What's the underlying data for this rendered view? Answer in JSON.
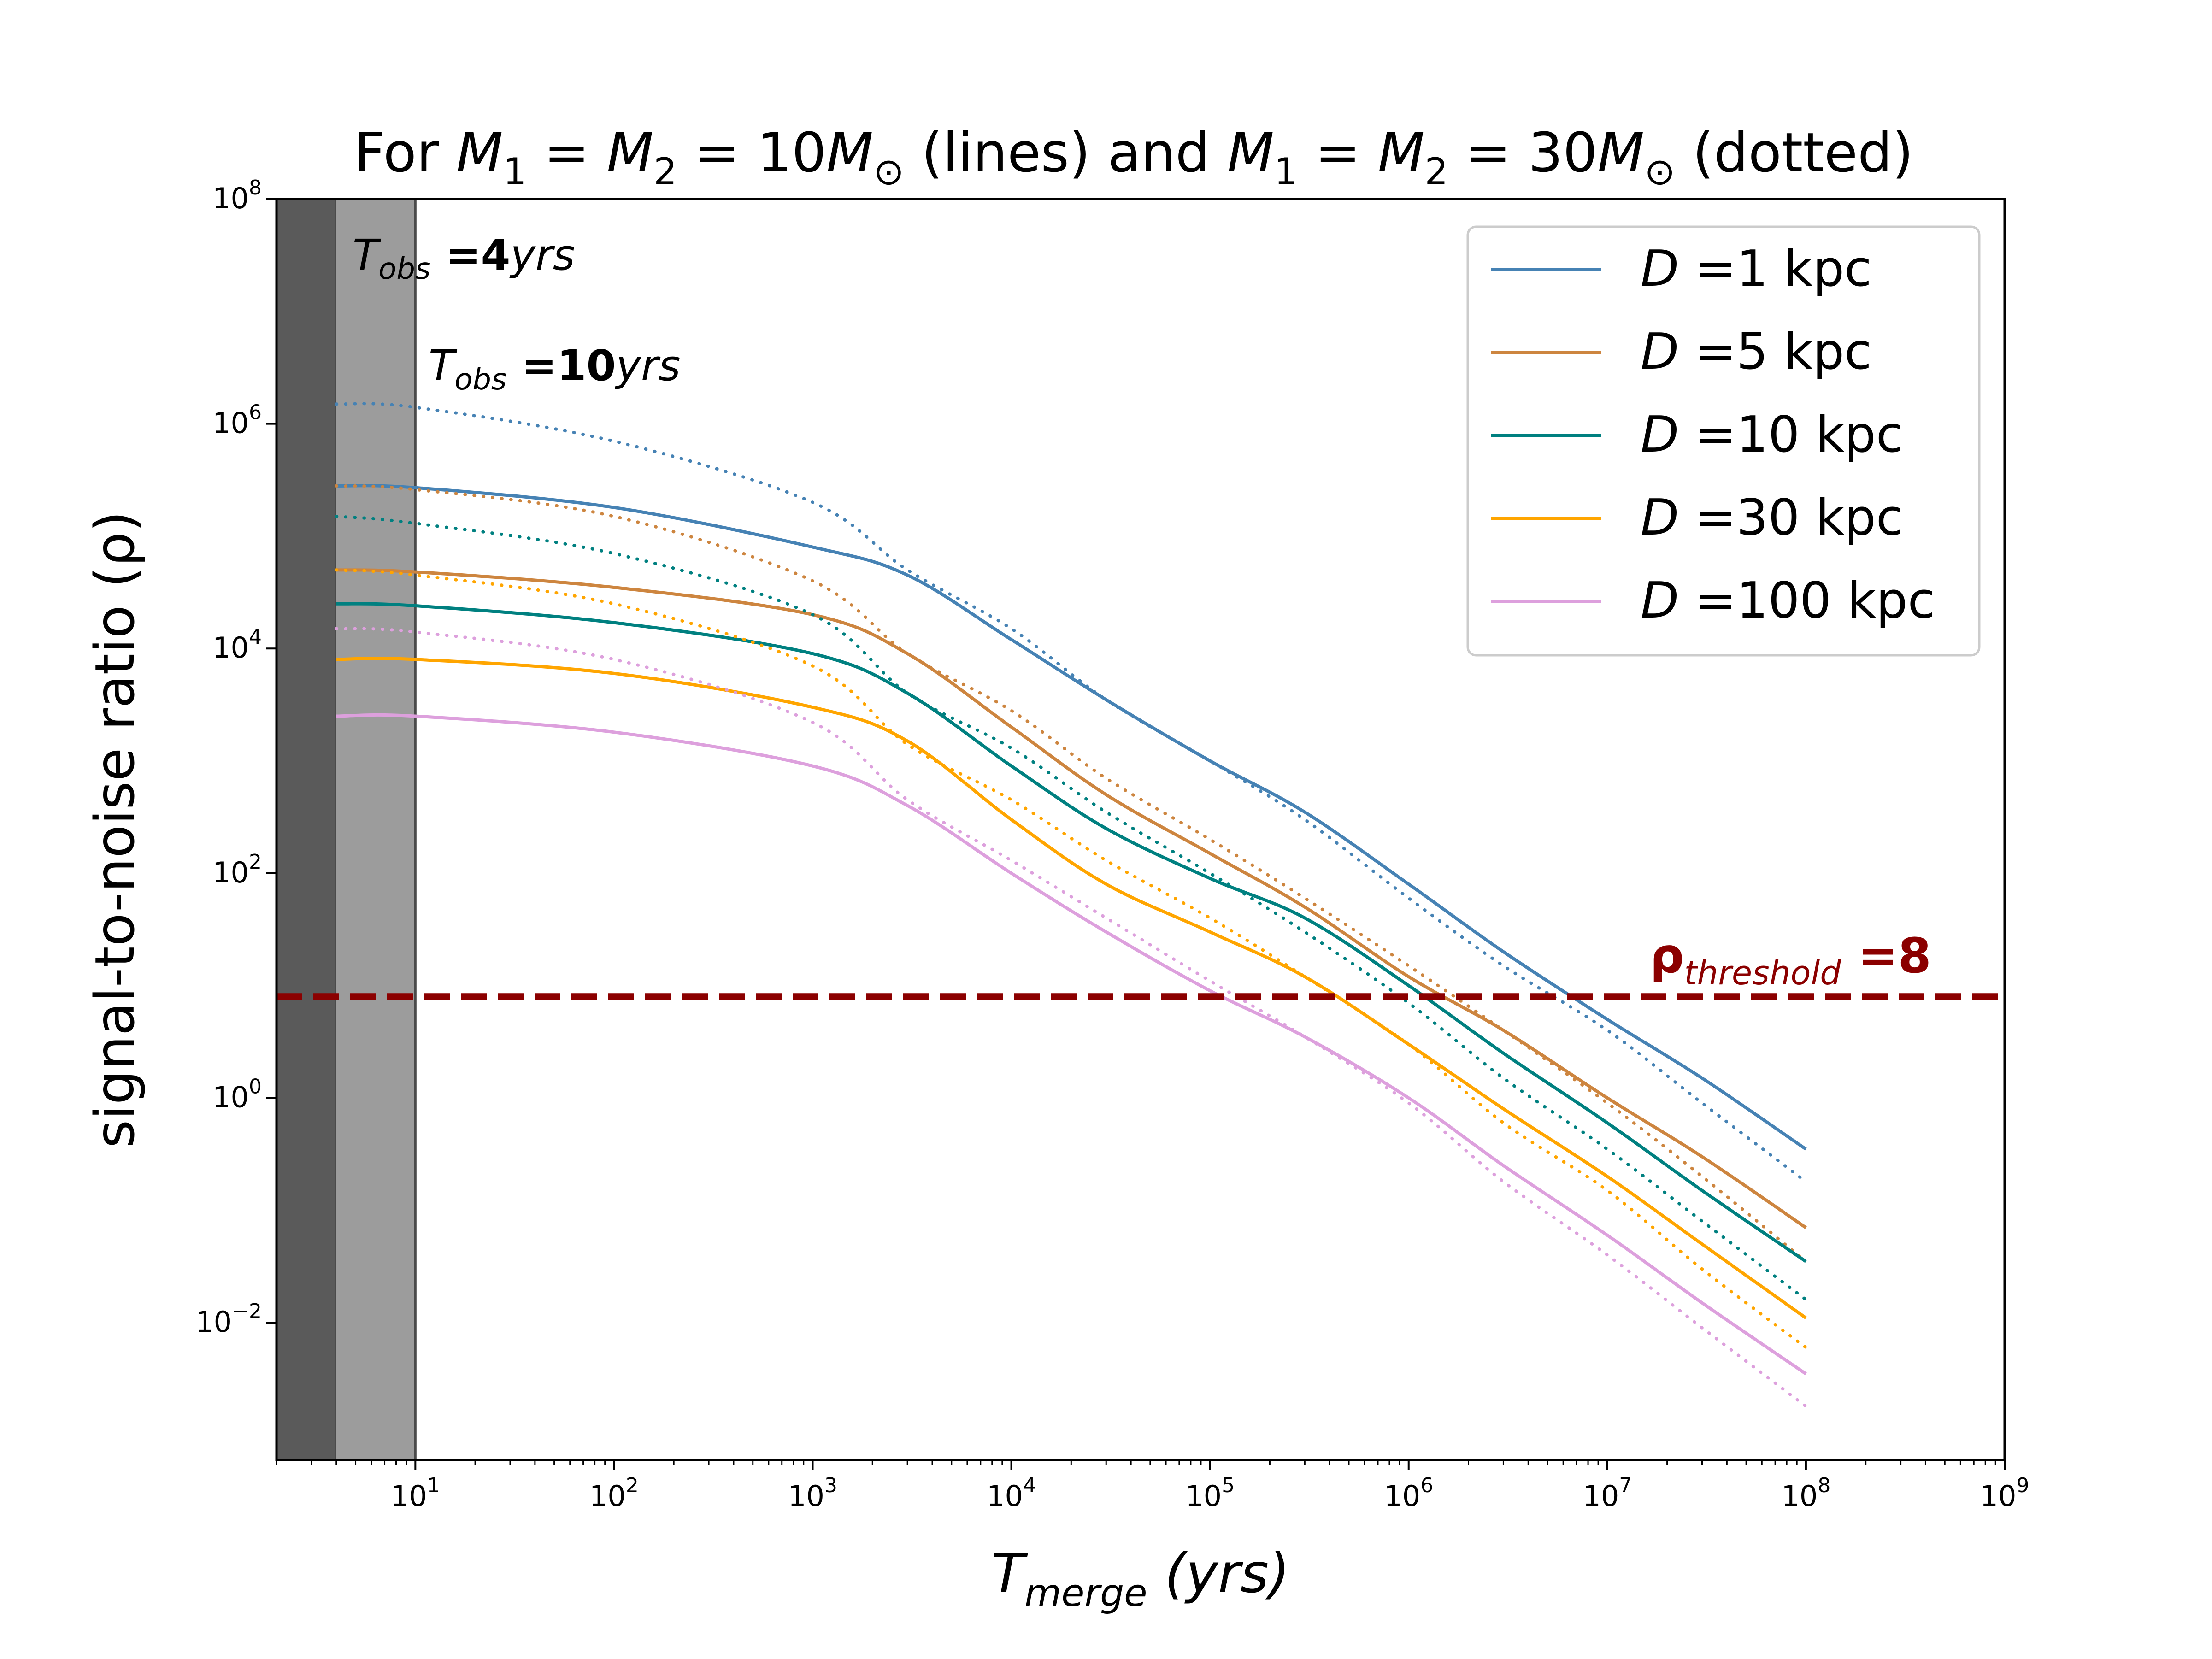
{
  "chart_data": {
    "type": "line",
    "title": {
      "pre": "For ",
      "mass_a": "M",
      "sub1": "1",
      "eq": " = ",
      "mass_b": "M",
      "sub2": "2",
      "val_lines": " = 10",
      "msun": "M",
      "sun": "⊙",
      "lines_word": " (lines) and ",
      "val_dotted": " = 30",
      "dotted_word": " (dotted)"
    },
    "xlabel": {
      "main": "T",
      "sub": "merge",
      "unit": " (yrs)"
    },
    "ylabel": "signal-to-noise ratio (ρ)",
    "x_scale": "log",
    "y_scale": "log",
    "xlim": [
      2,
      1000000000
    ],
    "ylim": [
      0.0006,
      100000000
    ],
    "x_ticks": [
      {
        "value": 10,
        "base": "10",
        "exp": "1"
      },
      {
        "value": 100,
        "base": "10",
        "exp": "2"
      },
      {
        "value": 1000,
        "base": "10",
        "exp": "3"
      },
      {
        "value": 10000,
        "base": "10",
        "exp": "4"
      },
      {
        "value": 100000,
        "base": "10",
        "exp": "5"
      },
      {
        "value": 1000000,
        "base": "10",
        "exp": "6"
      },
      {
        "value": 10000000,
        "base": "10",
        "exp": "7"
      },
      {
        "value": 100000000,
        "base": "10",
        "exp": "8"
      },
      {
        "value": 1000000000,
        "base": "10",
        "exp": "9"
      }
    ],
    "y_ticks": [
      {
        "value": 0.01,
        "base": "10",
        "exp": "−2"
      },
      {
        "value": 1,
        "base": "10",
        "exp": "0"
      },
      {
        "value": 100,
        "base": "10",
        "exp": "2"
      },
      {
        "value": 10000,
        "base": "10",
        "exp": "4"
      },
      {
        "value": 1000000,
        "base": "10",
        "exp": "6"
      },
      {
        "value": 100000000,
        "base": "10",
        "exp": "8"
      }
    ],
    "grid": false,
    "legend_position": "top-right",
    "shaded_regions": [
      {
        "x0": 2,
        "x1": 4,
        "color": "#5a5a5a",
        "label_main": "T",
        "label_sub": "obs",
        "label_eq": " =",
        "label_num": "4",
        "label_unit": "yrs"
      },
      {
        "x0": 4,
        "x1": 10,
        "color": "#9c9c9c",
        "label_main": "T",
        "label_sub": "obs",
        "label_eq": " =",
        "label_num": "10",
        "label_unit": "yrs"
      }
    ],
    "threshold": {
      "value": 8,
      "color": "#8b0000",
      "label_main": "ρ",
      "label_sub": "threshold",
      "label_eq": " =8"
    },
    "legend": [
      {
        "prefix": "D",
        "text": " =1 kpc",
        "color": "#4682b4"
      },
      {
        "prefix": "D",
        "text": " =5 kpc",
        "color": "#cd853f"
      },
      {
        "prefix": "D",
        "text": " =10 kpc",
        "color": "#008080"
      },
      {
        "prefix": "D",
        "text": " =30 kpc",
        "color": "#ffa500"
      },
      {
        "prefix": "D",
        "text": " =100 kpc",
        "color": "#dda0dd"
      }
    ],
    "series": [
      {
        "style": "solid",
        "color": "#4682b4",
        "x": [
          4,
          10,
          100,
          1000,
          3000,
          10000,
          30000,
          100000,
          300000,
          1000000,
          3000000,
          10000000,
          30000000,
          100000000
        ],
        "y": [
          280000,
          270000,
          180000,
          80000,
          45000,
          12000,
          3500,
          1000,
          350,
          80,
          20,
          5,
          1.5,
          0.35
        ]
      },
      {
        "style": "dotted",
        "color": "#4682b4",
        "x": [
          4,
          10,
          100,
          1000,
          3000,
          10000,
          30000,
          100000,
          300000,
          1000000,
          3000000,
          10000000,
          30000000,
          100000000
        ],
        "y": [
          1500000,
          1400000,
          700000,
          200000,
          50000,
          15000,
          3500,
          1000,
          300,
          60,
          15,
          4,
          0.9,
          0.18
        ]
      },
      {
        "style": "solid",
        "color": "#cd853f",
        "x": [
          4,
          10,
          100,
          1000,
          3000,
          10000,
          30000,
          100000,
          300000,
          1000000,
          3000000,
          10000000,
          30000000,
          100000000
        ],
        "y": [
          50000,
          48000,
          35000,
          20000,
          9000,
          2000,
          500,
          150,
          50,
          12,
          4,
          1,
          0.3,
          0.07
        ]
      },
      {
        "style": "dotted",
        "color": "#cd853f",
        "x": [
          4,
          10,
          100,
          1000,
          3000,
          10000,
          30000,
          100000,
          300000,
          1000000,
          3000000,
          10000000,
          30000000,
          100000000
        ],
        "y": [
          280000,
          260000,
          150000,
          40000,
          9000,
          2800,
          700,
          200,
          60,
          15,
          4,
          0.9,
          0.2,
          0.035
        ]
      },
      {
        "style": "solid",
        "color": "#008080",
        "x": [
          4,
          10,
          100,
          1000,
          3000,
          10000,
          30000,
          100000,
          300000,
          1000000,
          3000000,
          10000000,
          30000000,
          100000000
        ],
        "y": [
          25000,
          24000,
          17000,
          9000,
          4000,
          900,
          250,
          90,
          40,
          10,
          2.5,
          0.6,
          0.15,
          0.035
        ]
      },
      {
        "style": "dotted",
        "color": "#008080",
        "x": [
          4,
          10,
          100,
          1000,
          3000,
          10000,
          30000,
          100000,
          300000,
          1000000,
          3000000,
          10000000,
          30000000,
          100000000
        ],
        "y": [
          150000,
          130000,
          70000,
          20000,
          4000,
          1300,
          350,
          100,
          30,
          7,
          1.5,
          0.35,
          0.08,
          0.016
        ]
      },
      {
        "style": "solid",
        "color": "#ffa500",
        "x": [
          4,
          10,
          100,
          1000,
          3000,
          10000,
          30000,
          100000,
          300000,
          1000000,
          3000000,
          10000000,
          30000000,
          100000000
        ],
        "y": [
          8000,
          8000,
          6000,
          3000,
          1500,
          300,
          80,
          30,
          12,
          3,
          0.8,
          0.2,
          0.05,
          0.011
        ]
      },
      {
        "style": "dotted",
        "color": "#ffa500",
        "x": [
          4,
          10,
          100,
          1000,
          3000,
          10000,
          30000,
          100000,
          300000,
          1000000,
          3000000,
          10000000,
          30000000,
          100000000
        ],
        "y": [
          50000,
          45000,
          25000,
          7000,
          1400,
          450,
          130,
          40,
          12,
          3,
          0.6,
          0.15,
          0.03,
          0.006
        ]
      },
      {
        "style": "solid",
        "color": "#dda0dd",
        "x": [
          4,
          10,
          100,
          1000,
          3000,
          10000,
          30000,
          100000,
          300000,
          1000000,
          3000000,
          10000000,
          30000000,
          100000000
        ],
        "y": [
          2500,
          2500,
          1800,
          900,
          400,
          100,
          30,
          9,
          3.5,
          1,
          0.25,
          0.06,
          0.015,
          0.0035
        ]
      },
      {
        "style": "dotted",
        "color": "#dda0dd",
        "x": [
          4,
          10,
          100,
          1000,
          3000,
          10000,
          30000,
          100000,
          300000,
          1000000,
          3000000,
          10000000,
          30000000,
          100000000
        ],
        "y": [
          15000,
          14000,
          8000,
          2200,
          450,
          130,
          40,
          11,
          3.5,
          0.9,
          0.18,
          0.04,
          0.009,
          0.0018
        ]
      }
    ]
  }
}
